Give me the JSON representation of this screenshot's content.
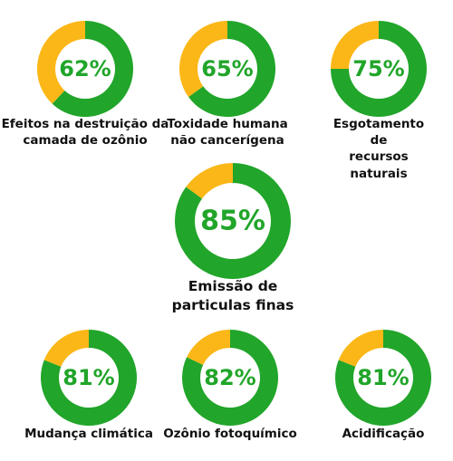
{
  "colors": {
    "complete": "#21a52a",
    "remainder": "#fbb717",
    "label": "#111111"
  },
  "chart_data": [
    {
      "type": "pie",
      "style": "donut",
      "values": [
        62,
        38
      ],
      "center_label": "62%",
      "label": "Efeitos na destruição da\ncamada de ozônio"
    },
    {
      "type": "pie",
      "style": "donut",
      "values": [
        65,
        35
      ],
      "center_label": "65%",
      "label": "Toxidade humana\nnão cancerígena"
    },
    {
      "type": "pie",
      "style": "donut",
      "values": [
        75,
        25
      ],
      "center_label": "75%",
      "label": "Esgotamento de\nrecursos naturais"
    },
    {
      "type": "pie",
      "style": "donut",
      "values": [
        85,
        15
      ],
      "center_label": "85%",
      "label": "Emissão de\nparticulas finas"
    },
    {
      "type": "pie",
      "style": "donut",
      "values": [
        81,
        19
      ],
      "center_label": "81%",
      "label": "Mudança climática"
    },
    {
      "type": "pie",
      "style": "donut",
      "values": [
        82,
        18
      ],
      "center_label": "82%",
      "label": "Ozônio fotoquímico"
    },
    {
      "type": "pie",
      "style": "donut",
      "values": [
        81,
        19
      ],
      "center_label": "81%",
      "label": "Acidificação"
    }
  ]
}
